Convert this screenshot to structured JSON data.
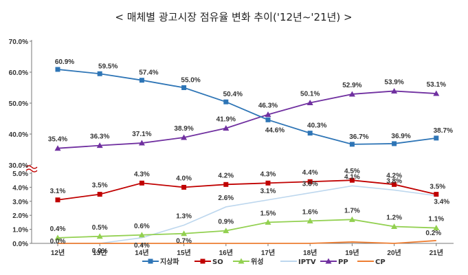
{
  "chart_data": {
    "type": "line",
    "title": "< 매체별 광고시장 점유율 변화 추이('12년~'21년) >",
    "categories": [
      "12년",
      "13년",
      "14년",
      "15년",
      "16년",
      "17년",
      "18년",
      "19년",
      "20년",
      "21년"
    ],
    "y_upper_ticks": [
      "30.0%",
      "40.0%",
      "50.0%",
      "60.0%",
      "70.0%"
    ],
    "y_lower_ticks": [
      "0.0%",
      "1.0%",
      "2.0%",
      "3.0%",
      "4.0%",
      "5.0%"
    ],
    "y_upper_range": [
      30,
      70
    ],
    "y_lower_range": [
      0,
      5
    ],
    "axis_break": true,
    "grid": false,
    "legend_position": "bottom",
    "series": [
      {
        "name": "지상파",
        "color": "#2E75B6",
        "marker": "square",
        "panel": "upper",
        "values": [
          60.9,
          59.5,
          57.4,
          55.0,
          50.4,
          44.6,
          40.3,
          36.7,
          36.9,
          38.7
        ],
        "labels": [
          "60.9%",
          "59.5%",
          "57.4%",
          "55.0%",
          "50.4%",
          "44.6%",
          "40.3%",
          "36.7%",
          "36.9%",
          "38.7%"
        ]
      },
      {
        "name": "SO",
        "color": "#C00000",
        "marker": "square",
        "panel": "lower",
        "values": [
          3.1,
          3.5,
          4.3,
          4.0,
          4.2,
          4.3,
          4.4,
          4.5,
          4.2,
          3.5
        ],
        "labels": [
          "3.1%",
          "3.5%",
          "4.3%",
          "4.0%",
          "4.2%",
          "4.3%",
          "4.4%",
          "4.5%",
          "4.2%",
          "3.5%"
        ]
      },
      {
        "name": "위성",
        "color": "#92D050",
        "marker": "triangle",
        "panel": "lower",
        "values": [
          0.4,
          0.5,
          0.6,
          0.7,
          0.9,
          1.5,
          1.6,
          1.7,
          1.2,
          1.1
        ],
        "labels": [
          "0.4%",
          "0.5%",
          "0.6%",
          "0.7%",
          "0.9%",
          "1.5%",
          "1.6%",
          "1.7%",
          "1.2%",
          "1.1%"
        ]
      },
      {
        "name": "IPTV",
        "color": "#BDD7EE",
        "marker": "none",
        "panel": "lower",
        "values": [
          0.0,
          0.0,
          0.4,
          1.3,
          2.6,
          3.1,
          3.6,
          4.1,
          3.8,
          3.4
        ],
        "labels": [
          "0.0%",
          "0.0%",
          "0.4%",
          "1.3%",
          "2.6%",
          "3.1%",
          "3.6%",
          "4.1%",
          "3.8%",
          "3.4%"
        ]
      },
      {
        "name": "PP",
        "color": "#7030A0",
        "marker": "triangle",
        "panel": "upper",
        "values": [
          35.4,
          36.3,
          37.1,
          38.9,
          41.9,
          46.3,
          50.1,
          52.9,
          53.9,
          53.1
        ],
        "labels": [
          "35.4%",
          "36.3%",
          "37.1%",
          "38.9%",
          "41.9%",
          "46.3%",
          "50.1%",
          "52.9%",
          "53.9%",
          "53.1%"
        ]
      },
      {
        "name": "CP",
        "color": "#ED7D31",
        "marker": "none",
        "panel": "lower",
        "values": [
          0.0,
          0.0,
          0.0,
          0.0,
          0.0,
          0.0,
          0.0,
          0.1,
          0.0,
          0.2
        ],
        "labels": [
          "",
          "",
          "",
          "",
          "",
          "",
          "",
          "",
          "",
          "0.2%"
        ]
      }
    ]
  }
}
